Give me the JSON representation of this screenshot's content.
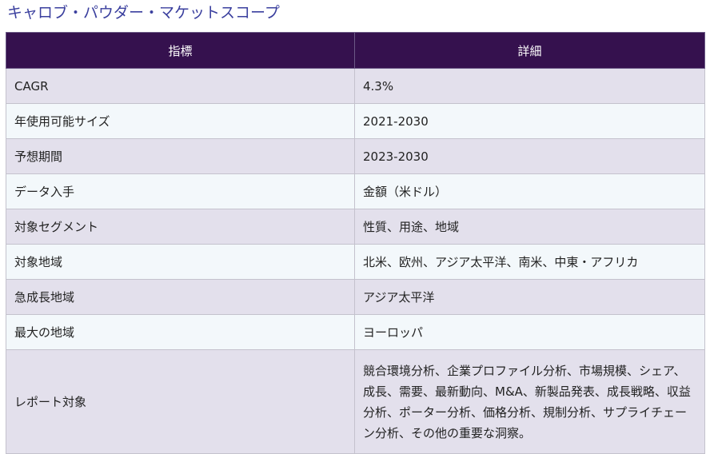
{
  "title": "キャロブ・パウダー・マケットスコープ",
  "table": {
    "headers": [
      "指標",
      "詳細"
    ],
    "rows": [
      {
        "label": "CAGR",
        "value": "4.3%"
      },
      {
        "label": "年使用可能サイズ",
        "value": "2021-2030"
      },
      {
        "label": "予想期間",
        "value": "2023-2030"
      },
      {
        "label": "データ入手",
        "value": "金額（米ドル）"
      },
      {
        "label": "対象セグメント",
        "value": "性質、用途、地域"
      },
      {
        "label": "対象地域",
        "value": "北米、欧州、アジア太平洋、南米、中東・アフリカ"
      },
      {
        "label": "急成長地域",
        "value": "アジア太平洋"
      },
      {
        "label": "最大の地域",
        "value": "ヨーロッパ"
      },
      {
        "label": "レポート対象",
        "value": "競合環境分析、企業プロファイル分析、市場規模、シェア、成長、需要、最新動向、M&A、新製品発表、成長戦略、収益分析、ポーター分析、価格分析、規制分析、サプライチェーン分析、その他の重要な洞察。"
      }
    ]
  },
  "colors": {
    "title": "#3a3f9e",
    "header_bg": "#35114e",
    "header_text": "#ffffff",
    "row_odd": "#e3e0ec",
    "row_even": "#f3f8fb"
  }
}
